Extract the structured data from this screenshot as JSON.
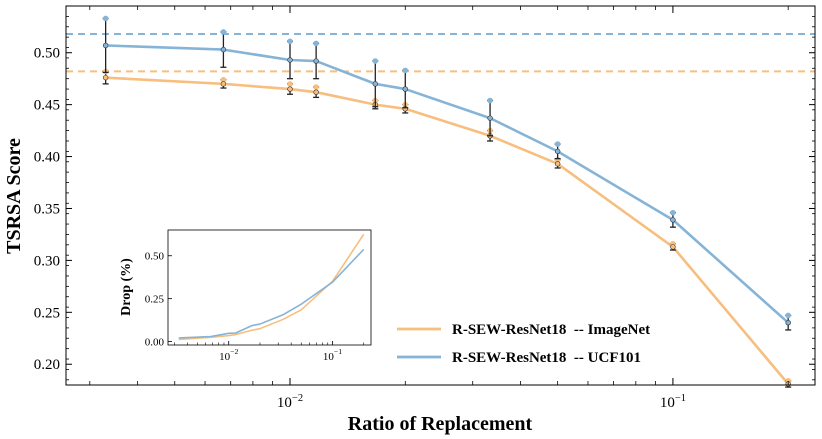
{
  "chart_data": [
    {
      "type": "line",
      "xscale": "log",
      "xlabel": "Ratio of Replacement",
      "ylabel": "TSRSA Score",
      "xlim": [
        0.0026,
        0.235
      ],
      "ylim": [
        0.18,
        0.545
      ],
      "x_ticks": [
        {
          "value": 0.01,
          "mantissa": "10",
          "exp": "−2"
        },
        {
          "value": 0.1,
          "mantissa": "10",
          "exp": "−1"
        }
      ],
      "y_ticks": [
        {
          "value": 0.2,
          "label": "0.20"
        },
        {
          "value": 0.25,
          "label": "0.25"
        },
        {
          "value": 0.3,
          "label": "0.30"
        },
        {
          "value": 0.35,
          "label": "0.35"
        },
        {
          "value": 0.4,
          "label": "0.40"
        },
        {
          "value": 0.45,
          "label": "0.45"
        },
        {
          "value": 0.5,
          "label": "0.50"
        }
      ],
      "reference_lines": [
        {
          "series": "R-SEW-ResNet18  -- ImageNet",
          "y": 0.482
        },
        {
          "series": "R-SEW-ResNet18  -- UCF101",
          "y": 0.518
        }
      ],
      "x": [
        0.0033,
        0.0067,
        0.01,
        0.0117,
        0.0167,
        0.02,
        0.0333,
        0.05,
        0.1,
        0.2
      ],
      "series": [
        {
          "name": "R-SEW-ResNet18  -- ImageNet",
          "color": "#f7be7d",
          "values": [
            0.476,
            0.47,
            0.465,
            0.462,
            0.45,
            0.446,
            0.42,
            0.393,
            0.313,
            0.181
          ],
          "err": [
            0.006,
            0.004,
            0.005,
            0.005,
            0.004,
            0.004,
            0.005,
            0.004,
            0.003,
            0.003
          ]
        },
        {
          "name": "R-SEW-ResNet18  -- UCF101",
          "color": "#86b4d6",
          "values": [
            0.507,
            0.503,
            0.493,
            0.492,
            0.47,
            0.465,
            0.437,
            0.405,
            0.339,
            0.24
          ],
          "err": [
            0.026,
            0.017,
            0.018,
            0.017,
            0.022,
            0.018,
            0.017,
            0.007,
            0.007,
            0.007
          ]
        }
      ],
      "legend_position": "lower-right"
    },
    {
      "type": "line",
      "xscale": "log",
      "ylabel": "Drop (%)",
      "xlim": [
        0.0026,
        0.235
      ],
      "ylim": [
        -0.02,
        0.65
      ],
      "x_ticks": [
        {
          "value": 0.01,
          "mantissa": "10",
          "exp": "−2"
        },
        {
          "value": 0.1,
          "mantissa": "10",
          "exp": "−1"
        }
      ],
      "y_ticks": [
        {
          "value": 0.0,
          "label": "0.00"
        },
        {
          "value": 0.25,
          "label": "0.25"
        },
        {
          "value": 0.5,
          "label": "0.50"
        }
      ],
      "x": [
        0.0033,
        0.0067,
        0.01,
        0.0117,
        0.0167,
        0.02,
        0.0333,
        0.05,
        0.1,
        0.2
      ],
      "series": [
        {
          "name": "R-SEW-ResNet18  -- ImageNet",
          "color": "#f7be7d",
          "values": [
            0.012,
            0.025,
            0.035,
            0.041,
            0.066,
            0.075,
            0.129,
            0.185,
            0.351,
            0.625
          ]
        },
        {
          "name": "R-SEW-ResNet18  -- UCF101",
          "color": "#86b4d6",
          "values": [
            0.021,
            0.029,
            0.048,
            0.05,
            0.093,
            0.102,
            0.156,
            0.218,
            0.346,
            0.537
          ]
        }
      ],
      "position": "lower-left inset"
    }
  ]
}
